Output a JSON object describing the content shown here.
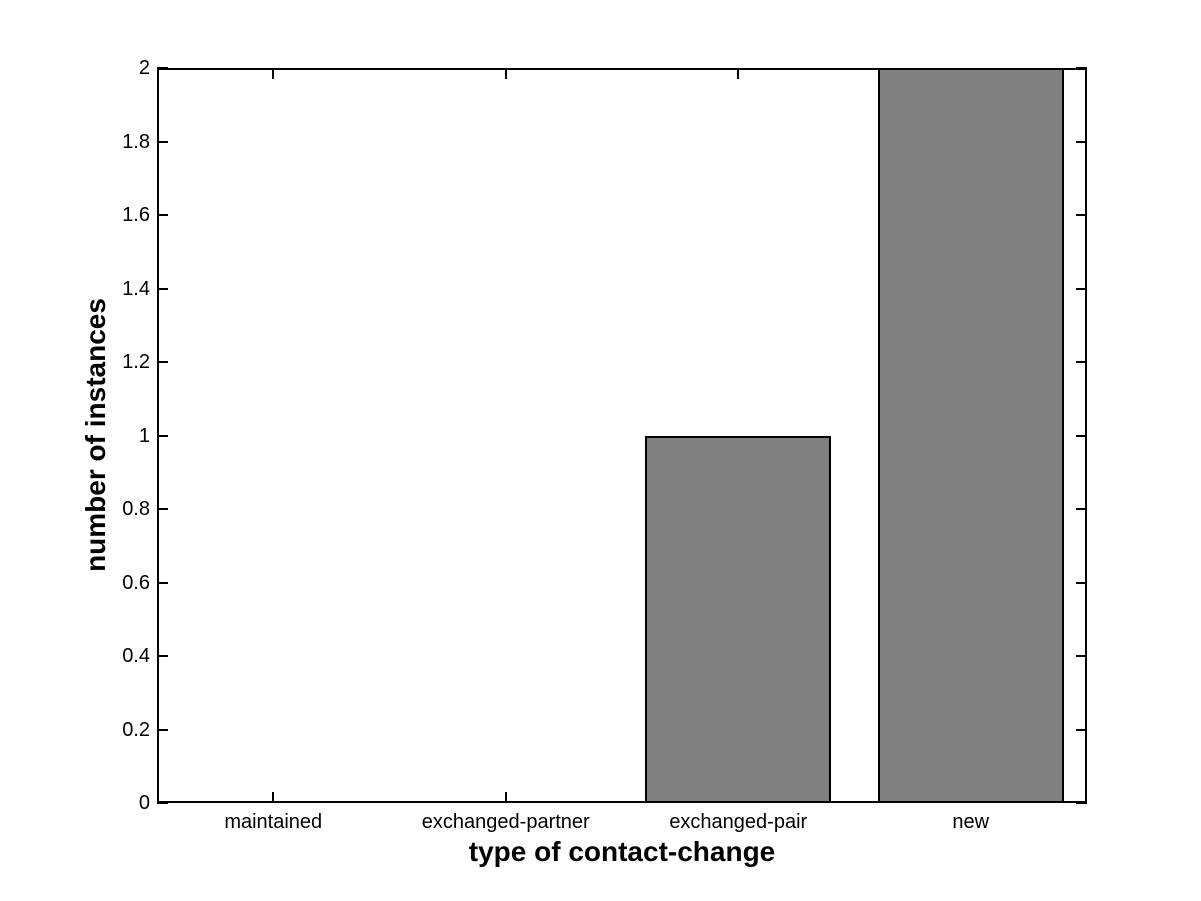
{
  "figure": {
    "background_color": "#ffffff",
    "plot_background_color": "#ffffff",
    "axis_color": "#000000"
  },
  "chart_data": {
    "type": "bar",
    "title": "",
    "xlabel": "type of contact-change",
    "ylabel": "number of instances",
    "categories": [
      "maintained",
      "exchanged-partner",
      "exchanged-pair",
      "new"
    ],
    "values": [
      0,
      0,
      1,
      2
    ],
    "ylim": [
      0,
      2
    ],
    "xlim": [
      0.5,
      4.5
    ],
    "yticks": [
      0,
      0.2,
      0.4,
      0.6,
      0.8,
      1,
      1.2,
      1.4,
      1.6,
      1.8,
      2
    ],
    "ytick_labels": [
      "0",
      "0.2",
      "0.4",
      "0.6",
      "0.8",
      "1",
      "1.2",
      "1.4",
      "1.6",
      "1.8",
      "2"
    ],
    "bar_width_ratio": 0.8,
    "bar_fill_color": "#808080",
    "bar_edge_color": "#000000",
    "grid": false,
    "legend": null,
    "tick_direction": "in",
    "box": true
  }
}
